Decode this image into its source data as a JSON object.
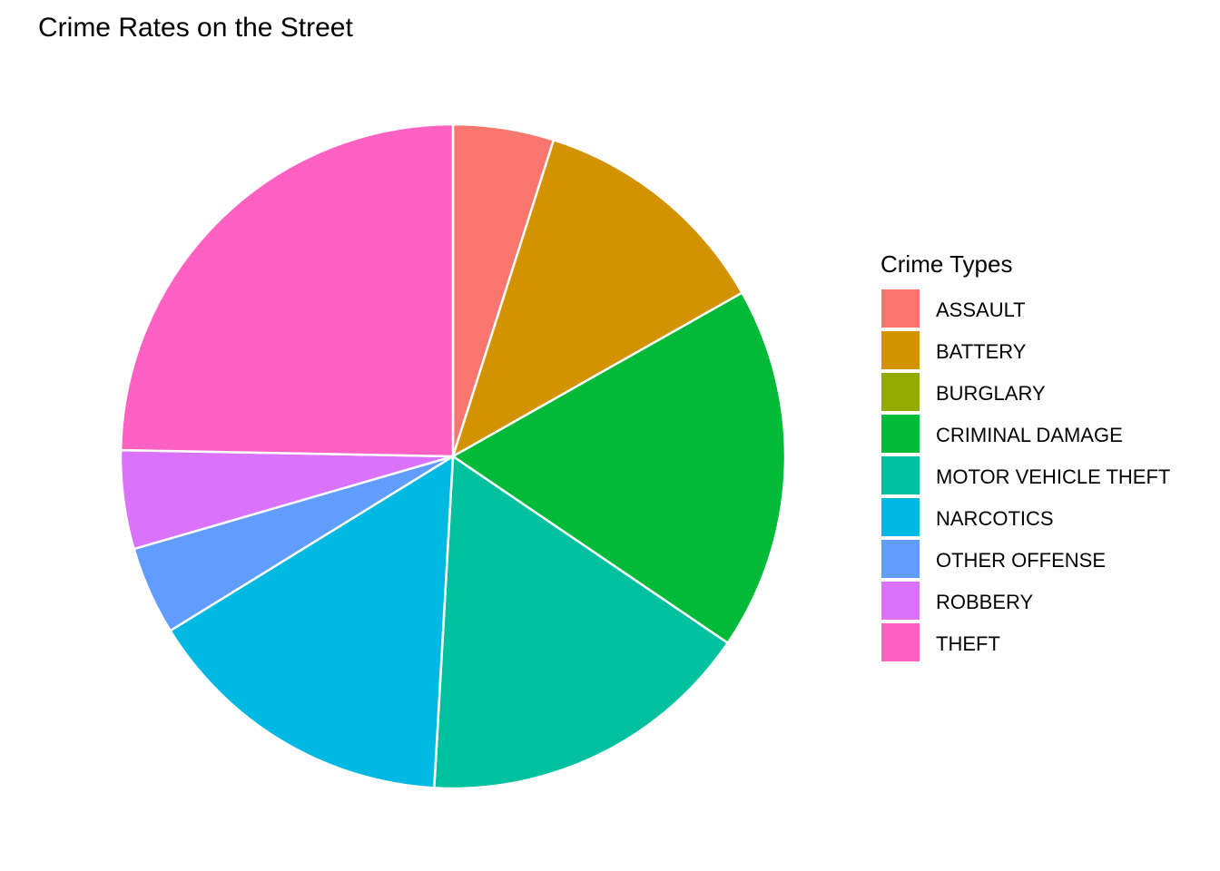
{
  "chart_data": {
    "type": "pie",
    "title": "Crime Rates on the Street",
    "legend_title": "Crime Types",
    "legend_position": "right",
    "start_angle": "12 o'clock",
    "direction": "clockwise",
    "slices": [
      {
        "label": "ASSAULT",
        "value": 0.049,
        "color": "#F8766D"
      },
      {
        "label": "BATTERY",
        "value": 0.119,
        "color": "#D39200"
      },
      {
        "label": "BURGLARY",
        "value": 0.0,
        "color": "#93AA00"
      },
      {
        "label": "CRIMINAL DAMAGE",
        "value": 0.177,
        "color": "#00BA38"
      },
      {
        "label": "MOTOR VEHICLE THEFT",
        "value": 0.164,
        "color": "#00C19F"
      },
      {
        "label": "NARCOTICS",
        "value": 0.153,
        "color": "#00B9E3"
      },
      {
        "label": "OTHER OFFENSE",
        "value": 0.043,
        "color": "#619CFF"
      },
      {
        "label": "ROBBERY",
        "value": 0.048,
        "color": "#DB72FB"
      },
      {
        "label": "THEFT",
        "value": 0.247,
        "color": "#FF61C3"
      }
    ]
  }
}
